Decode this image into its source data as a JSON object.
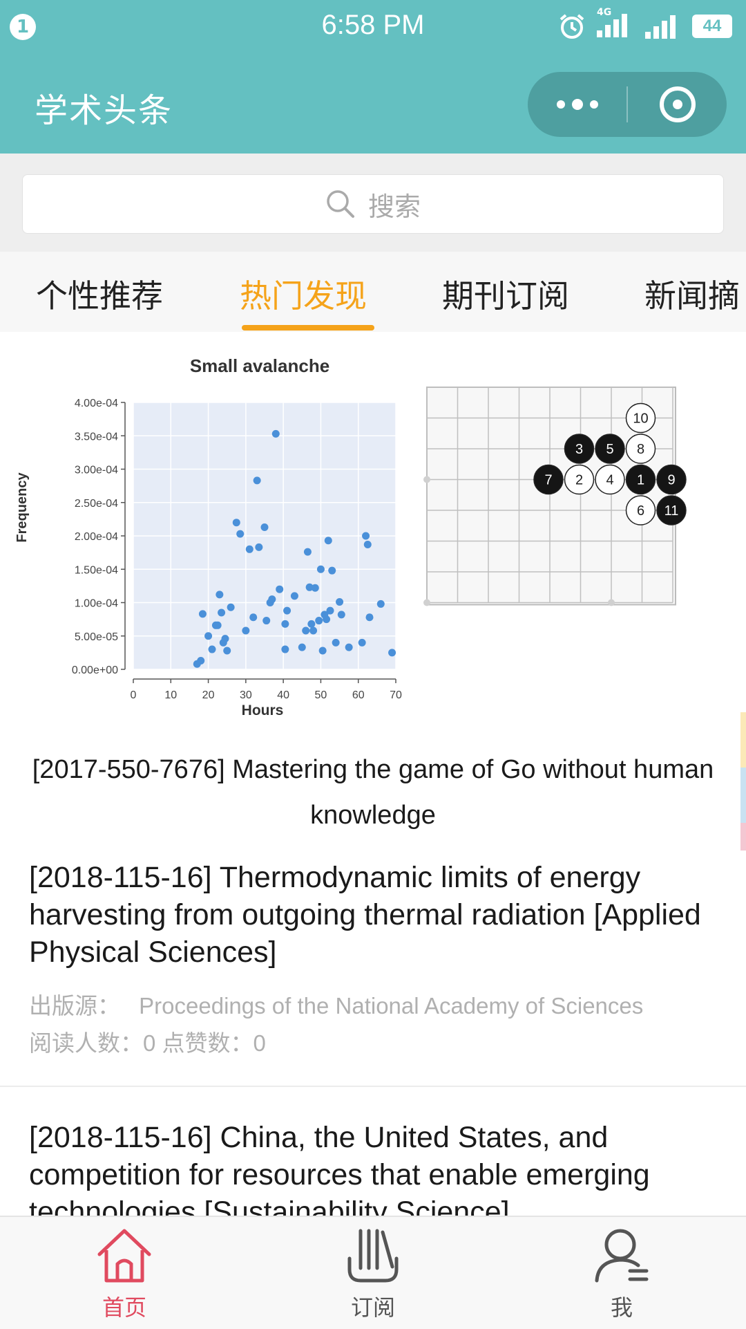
{
  "status_bar": {
    "notification_count": "1",
    "time": "6:58 PM",
    "network_label": "4G",
    "battery": "44"
  },
  "nav": {
    "title": "学术头条",
    "more_icon": "more-dots-icon",
    "close_icon": "target-close-icon"
  },
  "search": {
    "placeholder": "搜索"
  },
  "tabs": [
    {
      "label": "个性推荐",
      "active": false
    },
    {
      "label": "热门发现",
      "active": true
    },
    {
      "label": "期刊订阅",
      "active": false
    },
    {
      "label": "新闻摘",
      "active": false
    }
  ],
  "feature": {
    "caption_line1": "[2017-550-7676] Mastering the game of Go without human",
    "caption_line2": "knowledge",
    "chart_data": {
      "type": "scatter",
      "title": "Small avalanche",
      "xlabel": "Hours",
      "ylabel": "Frequency",
      "xlim": [
        0,
        70
      ],
      "ylim": [
        0,
        0.0004
      ],
      "x_ticks": [
        "0",
        "10",
        "20",
        "30",
        "40",
        "50",
        "60",
        "70"
      ],
      "y_ticks": [
        "0.00e+00",
        "5.00e-05",
        "1.00e-04",
        "1.50e-04",
        "2.00e-04",
        "2.50e-04",
        "3.00e-04",
        "3.50e-04",
        "4.00e-04"
      ],
      "grid": true,
      "points": [
        [
          17,
          8e-06
        ],
        [
          18,
          1.3e-05
        ],
        [
          18.5,
          8.3e-05
        ],
        [
          20,
          5e-05
        ],
        [
          21,
          3e-05
        ],
        [
          22,
          6.6e-05
        ],
        [
          22.5,
          6.6e-05
        ],
        [
          23,
          0.000112
        ],
        [
          23.5,
          8.5e-05
        ],
        [
          24,
          4e-05
        ],
        [
          24.5,
          4.6e-05
        ],
        [
          25,
          2.8e-05
        ],
        [
          26,
          9.3e-05
        ],
        [
          27.5,
          0.00022
        ],
        [
          28.5,
          0.000203
        ],
        [
          30,
          5.8e-05
        ],
        [
          31,
          0.00018
        ],
        [
          32,
          7.8e-05
        ],
        [
          33,
          0.000283
        ],
        [
          33.5,
          0.000183
        ],
        [
          35,
          0.000213
        ],
        [
          35.5,
          7.3e-05
        ],
        [
          36.5,
          0.0001
        ],
        [
          37,
          0.000105
        ],
        [
          38,
          0.000353
        ],
        [
          39,
          0.00012
        ],
        [
          40.5,
          3e-05
        ],
        [
          41,
          8.8e-05
        ],
        [
          40.5,
          6.8e-05
        ],
        [
          43,
          0.00011
        ],
        [
          45,
          3.3e-05
        ],
        [
          46,
          5.8e-05
        ],
        [
          46.5,
          0.000176
        ],
        [
          47,
          0.000123
        ],
        [
          47.5,
          6.8e-05
        ],
        [
          48,
          5.8e-05
        ],
        [
          48.5,
          0.000122
        ],
        [
          49.5,
          7.3e-05
        ],
        [
          50,
          0.00015
        ],
        [
          50.5,
          2.8e-05
        ],
        [
          51,
          8.2e-05
        ],
        [
          51.5,
          7.5e-05
        ],
        [
          52,
          0.000193
        ],
        [
          52.5,
          8.8e-05
        ],
        [
          53,
          0.000148
        ],
        [
          54,
          4e-05
        ],
        [
          55,
          0.000101
        ],
        [
          55.5,
          8.2e-05
        ],
        [
          57.5,
          3.3e-05
        ],
        [
          61,
          4e-05
        ],
        [
          62,
          0.0002
        ],
        [
          62.5,
          0.000187
        ],
        [
          63,
          7.8e-05
        ],
        [
          66,
          9.8e-05
        ],
        [
          69,
          2.5e-05
        ]
      ]
    },
    "go_board": {
      "black_stones": [
        "3",
        "5",
        "7",
        "1",
        "9",
        "11"
      ],
      "white_stones": [
        "10",
        "8",
        "2",
        "4",
        "6"
      ]
    }
  },
  "articles": [
    {
      "title": "[2018-115-16] Thermodynamic limits of energy harvesting from outgoing thermal radiation [Applied Physical Sciences]",
      "source_label": "出版源：",
      "source": "Proceedings of the National Academy of Sciences",
      "stats": "阅读人数：0 点赞数：0"
    },
    {
      "title": "[2018-115-16] China, the United States, and competition for resources that enable emerging technologies [Sustainability Science]"
    }
  ],
  "bottom_tabs": [
    {
      "label": "首页",
      "icon": "home-icon",
      "active": true
    },
    {
      "label": "订阅",
      "icon": "subscribe-icon",
      "active": false
    },
    {
      "label": "我",
      "icon": "user-icon",
      "active": false
    }
  ],
  "colors": {
    "primary": "#64c0c1",
    "accent": "#f5a31a",
    "home_active": "#e04a5f",
    "scatter_point": "#4a90d9"
  }
}
